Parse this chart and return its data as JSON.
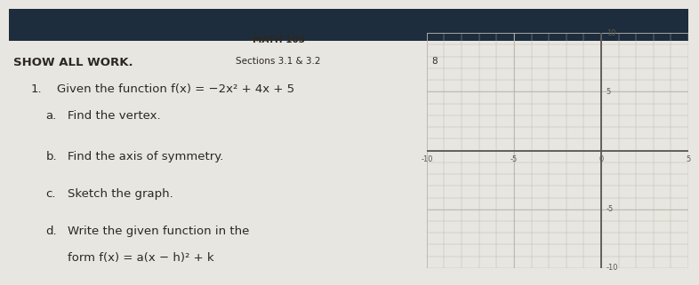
{
  "title": "MATH 103",
  "subtitle": "Sections 3.1 & 3.2",
  "show_all_work": "SHOW ALL WORK.",
  "page_number": "8",
  "item_number": "1.",
  "item_text_line1": "Given the function ",
  "item_func": "f(x) = −2x² + 4x + 5",
  "item_text_line2": "Find the vertex.",
  "sub_a_label": "a.",
  "sub_a_text": "Find the vertex.",
  "sub_b_label": "b.",
  "sub_b_text": "Find the axis of symmetry.",
  "sub_c_label": "c.",
  "sub_c_text": "Sketch the graph.",
  "sub_d_label": "d.",
  "sub_d_text1": "Write the given function in the",
  "sub_d_text2": "form f(x) = a(x − h)² + k",
  "paper_color": "#e8e6e0",
  "dark_bg_color": "#1e2d3d",
  "grid_color": "#b8b5ae",
  "axis_color": "#5a5850",
  "text_color": "#2a2820",
  "grid_xlim": [
    -10,
    5
  ],
  "grid_ylim": [
    -10,
    10
  ],
  "grid_xtick_vals": [
    -10,
    -5,
    0,
    5
  ],
  "grid_xtick_labels": [
    "-10",
    "-5",
    "0",
    "5"
  ],
  "grid_ytick_vals": [
    10,
    5,
    -5,
    -10
  ],
  "grid_ytick_labels": [
    "10",
    "5",
    "-5",
    "-10"
  ],
  "tick_fontsize": 6.0,
  "title_fontsize": 8.0,
  "body_fontsize": 9.5,
  "bold_fontsize": 9.5
}
